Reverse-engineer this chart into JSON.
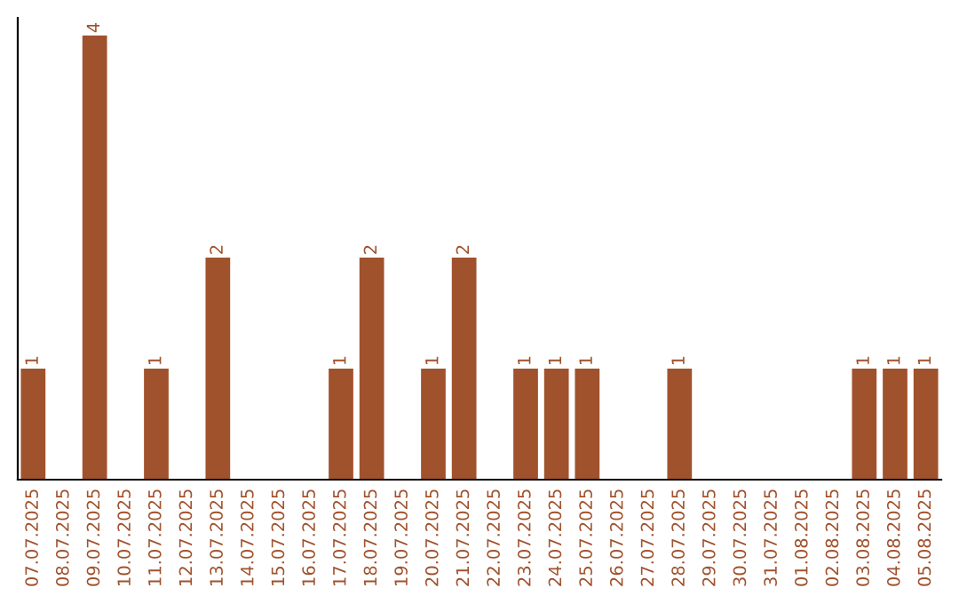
{
  "chart_data": {
    "type": "bar",
    "categories": [
      "07.07.2025",
      "08.07.2025",
      "09.07.2025",
      "10.07.2025",
      "11.07.2025",
      "12.07.2025",
      "13.07.2025",
      "14.07.2025",
      "15.07.2025",
      "16.07.2025",
      "17.07.2025",
      "18.07.2025",
      "19.07.2025",
      "20.07.2025",
      "21.07.2025",
      "22.07.2025",
      "23.07.2025",
      "24.07.2025",
      "25.07.2025",
      "26.07.2025",
      "27.07.2025",
      "28.07.2025",
      "29.07.2025",
      "30.07.2025",
      "31.07.2025",
      "01.08.2025",
      "02.08.2025",
      "03.08.2025",
      "04.08.2025",
      "05.08.2025"
    ],
    "values": [
      1,
      0,
      4,
      0,
      1,
      0,
      2,
      0,
      0,
      0,
      1,
      2,
      0,
      1,
      2,
      0,
      1,
      1,
      1,
      0,
      0,
      1,
      0,
      0,
      0,
      0,
      0,
      1,
      1,
      1
    ],
    "value_labels": [
      "1",
      null,
      "4",
      null,
      "1",
      null,
      "2",
      null,
      null,
      null,
      "1",
      "2",
      null,
      "1",
      "2",
      null,
      "1",
      "1",
      "1",
      null,
      null,
      "1",
      null,
      null,
      null,
      null,
      null,
      "1",
      "1",
      "1"
    ],
    "color": "#a0522d",
    "tick_labels": "x",
    "grid": false,
    "legend": false
  }
}
